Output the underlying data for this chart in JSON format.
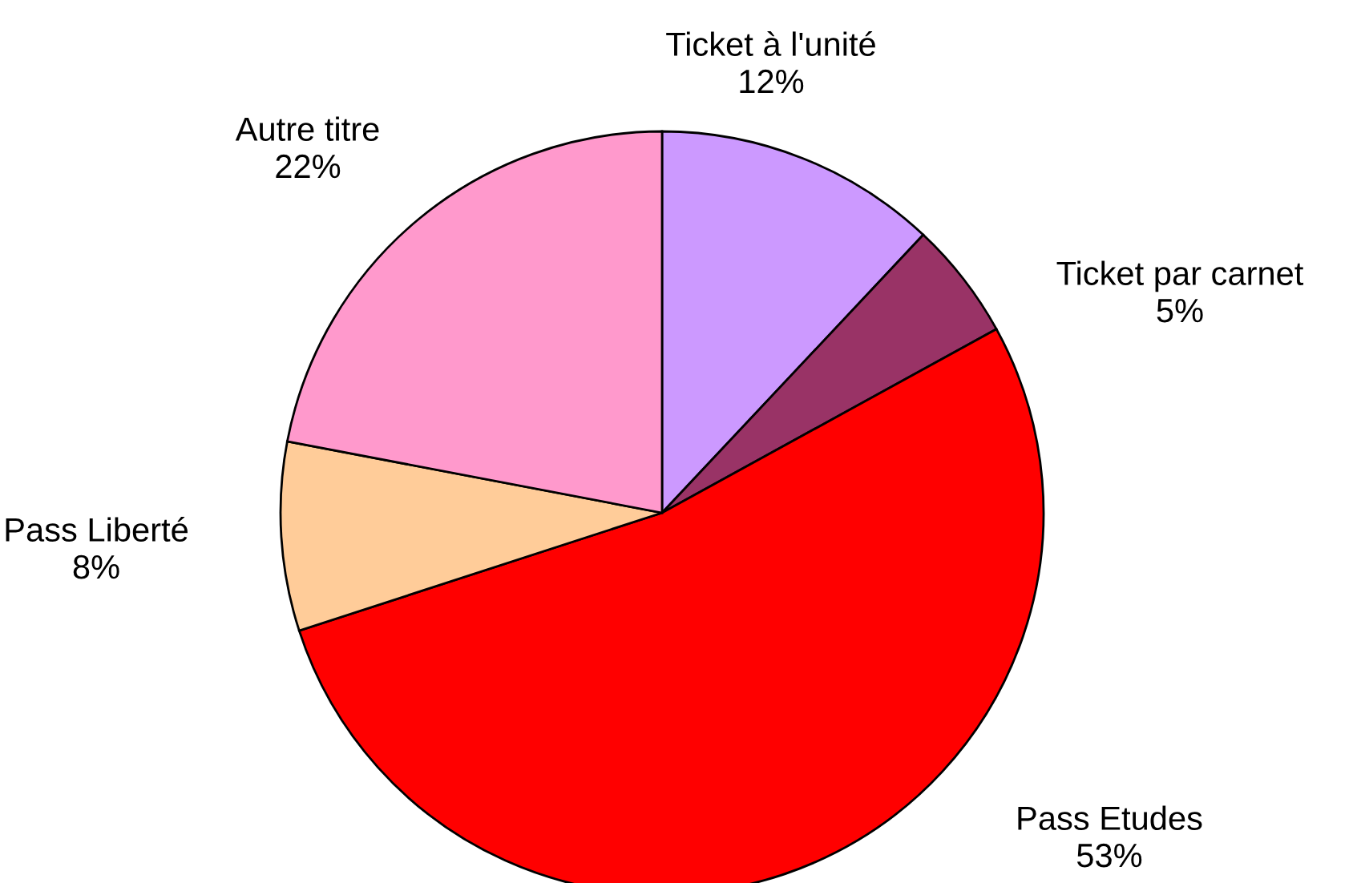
{
  "chart_data": {
    "type": "pie",
    "categories": [
      "Ticket à l'unité",
      "Ticket par carnet",
      "Pass Etudes",
      "Pass Liberté",
      "Autre titre"
    ],
    "values": [
      12,
      5,
      53,
      8,
      22
    ],
    "colors": [
      "#cc99ff",
      "#993366",
      "#ff0000",
      "#ffcc99",
      "#ff99cc"
    ],
    "value_labels": [
      "12%",
      "5%",
      "53%",
      "8%",
      "22%"
    ]
  }
}
